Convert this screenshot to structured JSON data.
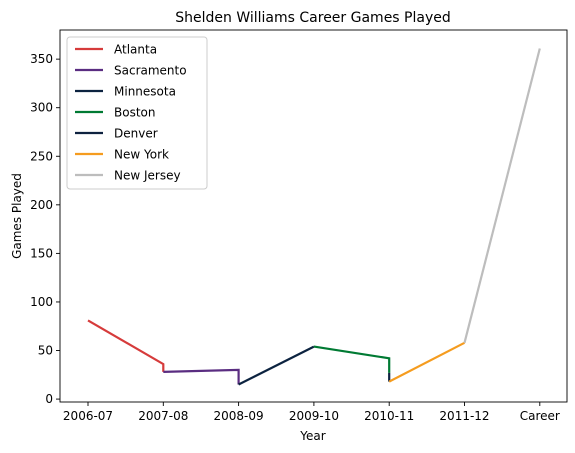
{
  "chart_data": {
    "type": "line",
    "title": "Shelden Williams Career Games Played",
    "xlabel": "Year",
    "ylabel": "Games Played",
    "categories": [
      "2006-07",
      "2007-08",
      "2008-09",
      "2009-10",
      "2010-11",
      "2011-12",
      "Career"
    ],
    "ylim": [
      -3,
      380
    ],
    "yticks": [
      0,
      50,
      100,
      150,
      200,
      250,
      300,
      350
    ],
    "grid": false,
    "legend_position": "top-left",
    "series": [
      {
        "name": "Atlanta",
        "color": "#d63b3b",
        "points": [
          [
            0,
            81
          ],
          [
            1,
            36
          ],
          [
            1,
            28
          ]
        ]
      },
      {
        "name": "Sacramento",
        "color": "#5a2d81",
        "points": [
          [
            1,
            28
          ],
          [
            2,
            30
          ],
          [
            2,
            15
          ]
        ]
      },
      {
        "name": "Minnesota",
        "color": "#0c2340",
        "points": [
          [
            2,
            15
          ],
          [
            3,
            54
          ]
        ]
      },
      {
        "name": "Boston",
        "color": "#007a33",
        "points": [
          [
            3,
            54
          ],
          [
            4,
            42
          ],
          [
            4,
            27
          ]
        ]
      },
      {
        "name": "Denver",
        "color": "#0e2240",
        "points": [
          [
            4,
            27
          ],
          [
            4,
            18
          ]
        ]
      },
      {
        "name": "New York",
        "color": "#f59c1f",
        "points": [
          [
            4,
            18
          ],
          [
            5,
            58
          ]
        ]
      },
      {
        "name": "New Jersey",
        "color": "#bdbdbd",
        "points": [
          [
            5,
            58
          ],
          [
            6,
            361
          ]
        ]
      }
    ]
  }
}
